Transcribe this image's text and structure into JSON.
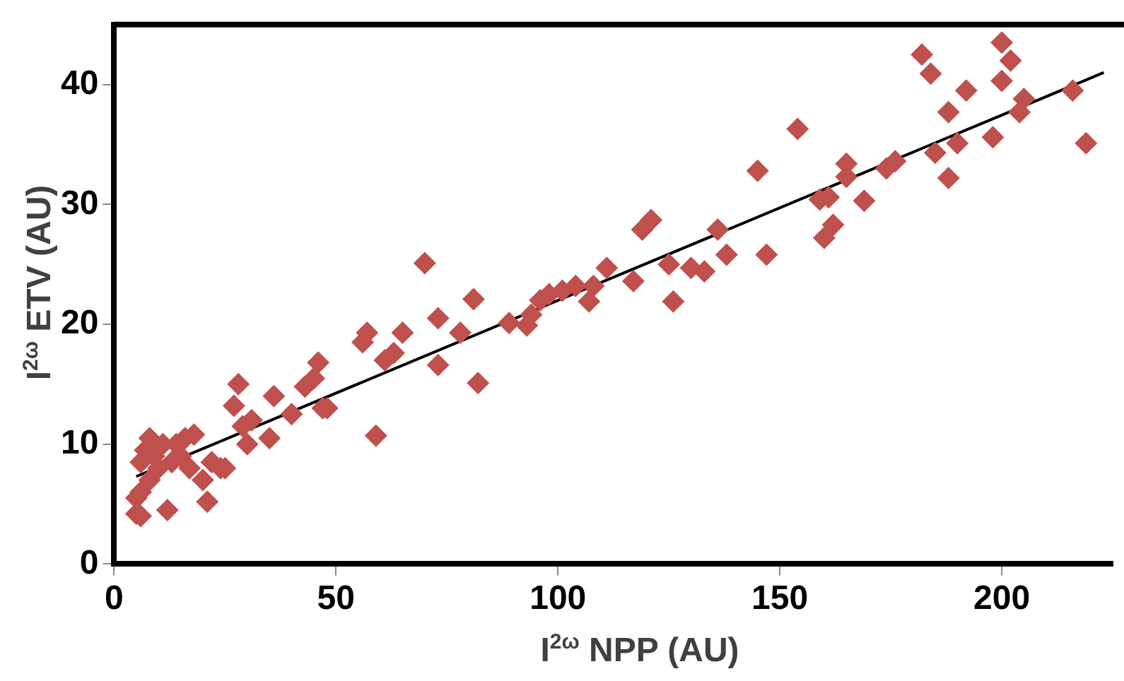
{
  "chart_data": {
    "type": "scatter",
    "xlabel": "I$^{2ω}$ NPP (AU)",
    "ylabel": "I$^{2ω}$ ETV (AU)",
    "xlim": [
      0,
      225
    ],
    "ylim": [
      0,
      45
    ],
    "xticks": [
      0,
      50,
      100,
      150,
      200
    ],
    "yticks": [
      0,
      10,
      20,
      30,
      40
    ],
    "grid": false,
    "legend": false,
    "marker": "diamond",
    "series": [
      {
        "color": "#c0504d",
        "x": [
          5,
          6,
          5,
          6,
          6,
          7,
          8,
          8,
          9,
          10,
          11,
          12,
          13,
          14,
          15,
          16,
          17,
          18,
          20,
          21,
          22,
          24,
          25,
          27,
          28,
          29,
          30,
          31,
          35,
          36,
          40,
          43,
          45,
          46,
          47,
          48,
          56,
          57,
          59,
          61,
          63,
          65,
          70,
          73,
          73,
          78,
          81,
          82,
          89,
          93,
          94,
          96,
          98,
          101,
          104,
          107,
          108,
          111,
          117,
          119,
          121,
          125,
          126,
          130,
          133,
          136,
          138,
          145,
          147,
          154,
          159,
          160,
          161,
          162,
          165,
          165,
          169,
          174,
          176,
          182,
          184,
          185,
          188,
          188,
          190,
          192,
          198,
          200,
          200,
          202,
          204,
          205,
          216,
          219
        ],
        "values": [
          4.2,
          4,
          5.5,
          6,
          8.5,
          9.5,
          10.5,
          7,
          9,
          8,
          10,
          4.5,
          8.5,
          10,
          9,
          10.5,
          8,
          10.8,
          7,
          5.2,
          8.5,
          8,
          8,
          13.2,
          15,
          11.5,
          10,
          12,
          10.5,
          14,
          12.5,
          14.8,
          15.5,
          16.8,
          13,
          13,
          18.5,
          19.3,
          10.7,
          17,
          17.6,
          19.3,
          25.1,
          20.5,
          16.6,
          19.3,
          22.1,
          15.1,
          20.1,
          19.9,
          20.8,
          22,
          22.5,
          22.8,
          23.2,
          21.9,
          23.2,
          24.7,
          23.6,
          27.9,
          28.7,
          25,
          21.9,
          24.7,
          24.4,
          27.9,
          25.8,
          32.8,
          25.8,
          36.3,
          30.4,
          27.2,
          30.6,
          28.3,
          32.3,
          33.4,
          30.3,
          33,
          33.6,
          42.5,
          40.9,
          34.3,
          37.7,
          32.2,
          35.1,
          39.5,
          35.6,
          43.5,
          40.3,
          42,
          37.7,
          38.8,
          39.5,
          35.1
        ]
      },
      {
        "type": "line",
        "color": "#000000",
        "marker": "none",
        "line_style": "solid",
        "x": [
          5,
          223
        ],
        "values": [
          7.3,
          41.0
        ]
      }
    ]
  }
}
